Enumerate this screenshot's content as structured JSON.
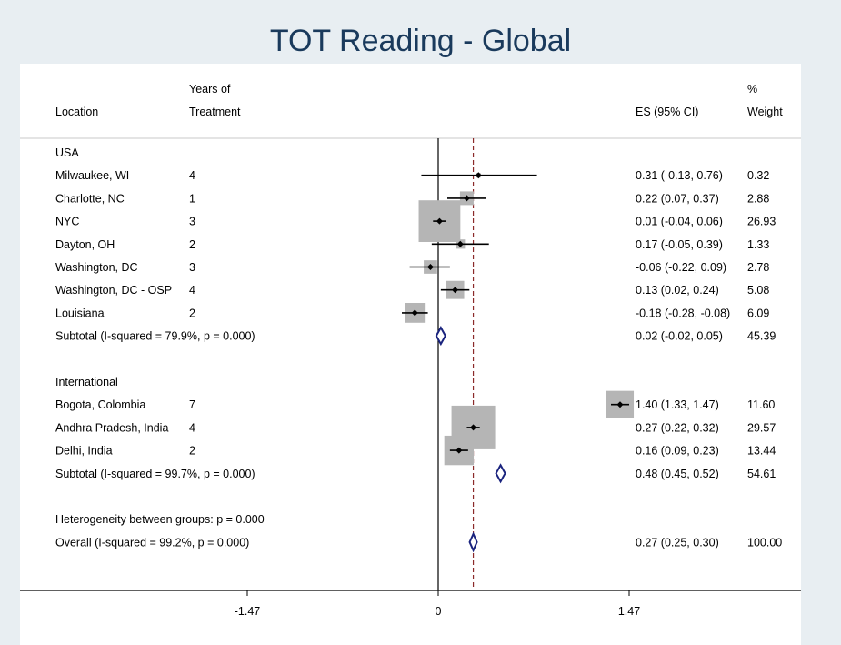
{
  "chart_data": {
    "type": "forest",
    "title": "TOT Reading - Global",
    "headers": {
      "location": "Location",
      "years_line1": "Years of",
      "years_line2": "Treatment",
      "es": "ES (95% CI)",
      "weight_line1": "%",
      "weight_line2": "Weight"
    },
    "x_axis": {
      "ticks": [
        -1.47,
        0,
        1.47
      ],
      "tick_labels": [
        "-1.47",
        "0",
        "1.47"
      ],
      "range": [
        -3.3,
        2.85
      ]
    },
    "overall_reference": 0.27,
    "rows": [
      {
        "kind": "group",
        "label": "USA"
      },
      {
        "kind": "study",
        "label": "Milwaukee, WI",
        "years": "4",
        "es": 0.31,
        "lo": -0.13,
        "hi": 0.76,
        "es_text": "0.31 (-0.13, 0.76)",
        "weight": 0.32,
        "weight_text": "0.32"
      },
      {
        "kind": "study",
        "label": "Charlotte, NC",
        "years": "1",
        "es": 0.22,
        "lo": 0.07,
        "hi": 0.37,
        "es_text": "0.22 (0.07, 0.37)",
        "weight": 2.88,
        "weight_text": "2.88"
      },
      {
        "kind": "study",
        "label": "NYC",
        "years": "3",
        "es": 0.01,
        "lo": -0.04,
        "hi": 0.06,
        "es_text": "0.01 (-0.04, 0.06)",
        "weight": 26.93,
        "weight_text": "26.93"
      },
      {
        "kind": "study",
        "label": "Dayton, OH",
        "years": "2",
        "es": 0.17,
        "lo": -0.05,
        "hi": 0.39,
        "es_text": "0.17 (-0.05, 0.39)",
        "weight": 1.33,
        "weight_text": "1.33"
      },
      {
        "kind": "study",
        "label": "Washington, DC",
        "years": "3",
        "es": -0.06,
        "lo": -0.22,
        "hi": 0.09,
        "es_text": "-0.06 (-0.22, 0.09)",
        "weight": 2.78,
        "weight_text": "2.78"
      },
      {
        "kind": "study",
        "label": "Washington, DC - OSP",
        "years": "4",
        "es": 0.13,
        "lo": 0.02,
        "hi": 0.24,
        "es_text": "0.13 (0.02, 0.24)",
        "weight": 5.08,
        "weight_text": "5.08"
      },
      {
        "kind": "study",
        "label": "Louisiana",
        "years": "2",
        "es": -0.18,
        "lo": -0.28,
        "hi": -0.08,
        "es_text": "-0.18 (-0.28, -0.08)",
        "weight": 6.09,
        "weight_text": "6.09"
      },
      {
        "kind": "subtotal",
        "label": "Subtotal  (I-squared = 79.9%, p = 0.000)",
        "es": 0.02,
        "lo": -0.02,
        "hi": 0.05,
        "es_text": "0.02 (-0.02, 0.05)",
        "weight_text": "45.39"
      },
      {
        "kind": "blank"
      },
      {
        "kind": "group",
        "label": "International"
      },
      {
        "kind": "study",
        "label": "Bogota, Colombia",
        "years": "7",
        "es": 1.4,
        "lo": 1.33,
        "hi": 1.47,
        "es_text": "1.40 (1.33, 1.47)",
        "weight": 11.6,
        "weight_text": "11.60"
      },
      {
        "kind": "study",
        "label": "Andhra Pradesh, India",
        "years": "4",
        "es": 0.27,
        "lo": 0.22,
        "hi": 0.32,
        "es_text": "0.27 (0.22, 0.32)",
        "weight": 29.57,
        "weight_text": "29.57"
      },
      {
        "kind": "study",
        "label": "Delhi, India",
        "years": "2",
        "es": 0.16,
        "lo": 0.09,
        "hi": 0.23,
        "es_text": "0.16 (0.09, 0.23)",
        "weight": 13.44,
        "weight_text": "13.44"
      },
      {
        "kind": "subtotal",
        "label": "Subtotal  (I-squared = 99.7%, p = 0.000)",
        "es": 0.48,
        "lo": 0.45,
        "hi": 0.52,
        "es_text": "0.48 (0.45, 0.52)",
        "weight_text": "54.61"
      },
      {
        "kind": "blank"
      },
      {
        "kind": "note",
        "label": "Heterogeneity between groups: p = 0.000"
      },
      {
        "kind": "overall",
        "label": "Overall  (I-squared = 99.2%, p = 0.000)",
        "es": 0.27,
        "lo": 0.25,
        "hi": 0.3,
        "es_text": "0.27 (0.25, 0.30)",
        "weight_text": "100.00"
      }
    ],
    "colors": {
      "box": "#b5b5b5",
      "diamond": "#1a237e",
      "reference_line": "#8b2a2a",
      "title": "#1a3a5c",
      "background": "#e8eef2",
      "panel": "#ffffff"
    }
  }
}
